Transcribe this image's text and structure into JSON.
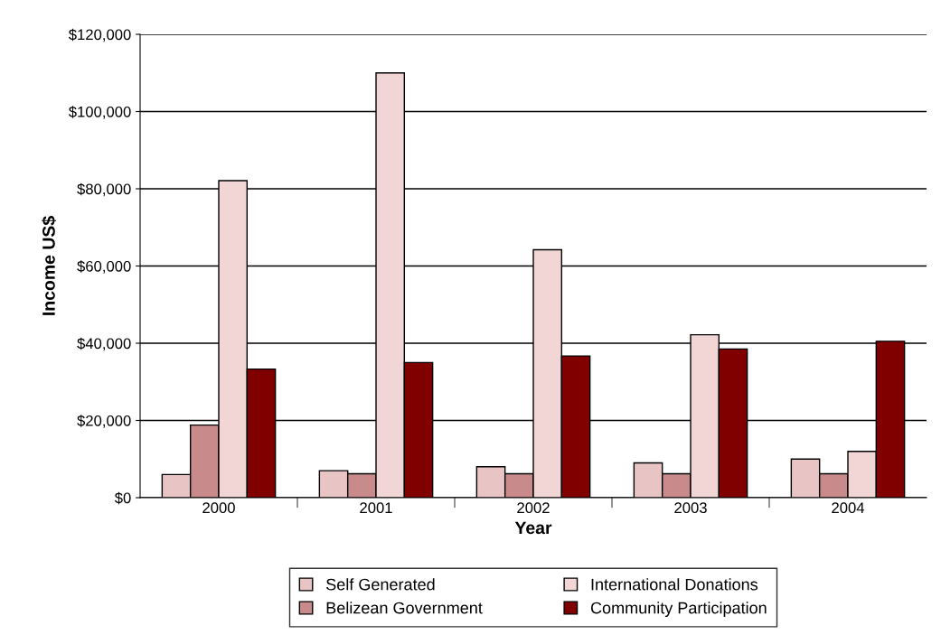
{
  "chart_data": {
    "type": "bar",
    "xlabel": "Year",
    "ylabel": "Income US$",
    "categories": [
      "2000",
      "2001",
      "2002",
      "2003",
      "2004"
    ],
    "series": [
      {
        "name": "Self Generated",
        "color": "#e8c4c4",
        "values": [
          6000,
          7000,
          8000,
          9000,
          10000
        ]
      },
      {
        "name": "Belizean Government",
        "color": "#c88a8a",
        "values": [
          18800,
          6200,
          6200,
          6200,
          6200
        ]
      },
      {
        "name": "International Donations",
        "color": "#f2d6d6",
        "values": [
          82100,
          110000,
          64200,
          42200,
          12000
        ]
      },
      {
        "name": "Community Participation",
        "color": "#800000",
        "values": [
          33300,
          35000,
          36700,
          38500,
          40500
        ]
      }
    ],
    "ylim": [
      0,
      120000
    ],
    "yticks": [
      {
        "value": 0,
        "label": "$0"
      },
      {
        "value": 20000,
        "label": "$20,000"
      },
      {
        "value": 40000,
        "label": "$40,000"
      },
      {
        "value": 60000,
        "label": "$60,000"
      },
      {
        "value": 80000,
        "label": "$80,000"
      },
      {
        "value": 100000,
        "label": "$100,000"
      },
      {
        "value": 120000,
        "label": "$120,000"
      }
    ],
    "grid": "y",
    "legend": "bottom"
  }
}
